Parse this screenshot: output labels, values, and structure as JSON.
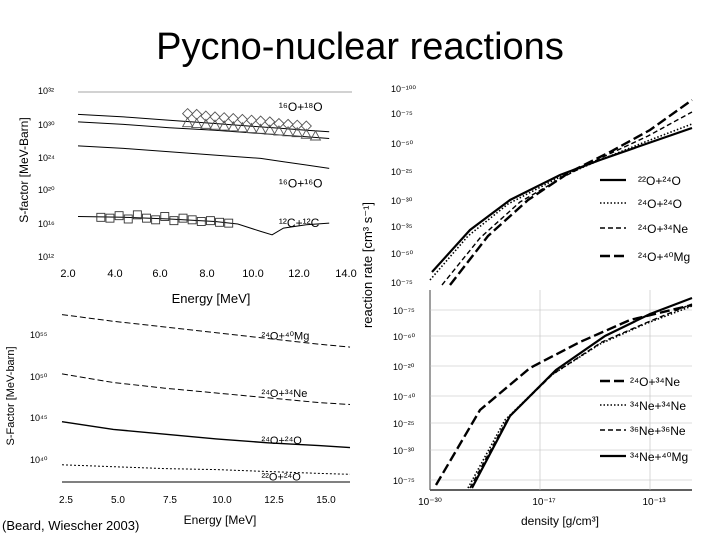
{
  "title": "Pycno-nuclear reactions",
  "citation": "(Beard, Wiescher 2003)",
  "colors": {
    "line": "#000000",
    "grid": "#bdbdbd",
    "frame": "#000000"
  },
  "chart_data": [
    {
      "type": "line",
      "id": "top-left",
      "ylabel": "S-factor   [MeV-Barn]",
      "xlabel": "Energy    [MeV]",
      "xlim": [
        2.0,
        14.0
      ],
      "xticks": [
        "2.0",
        "4.0",
        "6.0",
        "8.0",
        "10.0",
        "12.0",
        "14.0"
      ],
      "yticks": [
        "10³²",
        "10³⁰",
        "10²⁴",
        "10²⁰",
        "10¹⁶",
        "10¹²"
      ],
      "ylim_exp": [
        12,
        32
      ],
      "log_y": true,
      "series": [
        {
          "name": "16O+18O curve",
          "x": [
            2,
            4,
            6,
            8,
            10,
            11,
            12,
            13
          ],
          "y": [
            29.3,
            29.0,
            28.6,
            28.2,
            27.8,
            27.6,
            27.4,
            27.2
          ]
        },
        {
          "name": "16O+18O lower curve",
          "x": [
            2,
            4,
            6,
            8,
            10,
            11,
            12,
            13
          ],
          "y": [
            28.4,
            28.1,
            27.7,
            27.4,
            27.0,
            26.8,
            26.6,
            26.4
          ]
        },
        {
          "name": "16O+16O curve",
          "x": [
            2,
            4,
            6,
            8,
            10,
            11,
            12,
            13
          ],
          "y": [
            25.5,
            25.2,
            24.8,
            24.4,
            24.0,
            23.6,
            23.2,
            22.8
          ]
        },
        {
          "name": "12C+12C curve",
          "x": [
            2,
            4,
            6,
            8,
            9,
            10,
            10.5,
            11,
            12,
            13
          ],
          "y": [
            17.0,
            16.9,
            16.7,
            16.4,
            16.1,
            15.2,
            14.8,
            15.6,
            16.0,
            16.2
          ]
        }
      ],
      "markers": [
        {
          "shape": "diamond",
          "x": [
            6.8,
            7.2,
            7.6,
            8.0,
            8.4,
            8.8,
            9.2,
            9.6,
            10.0,
            10.4,
            10.8,
            11.2,
            11.6,
            12.0
          ],
          "y": [
            29.4,
            29.3,
            29.1,
            29.0,
            28.9,
            28.8,
            28.7,
            28.6,
            28.5,
            28.4,
            28.2,
            28.1,
            28.0,
            27.9
          ]
        },
        {
          "shape": "triangle",
          "x": [
            6.8,
            7.2,
            7.6,
            8.0,
            8.4,
            8.8,
            9.2,
            9.6,
            10.0,
            10.4,
            10.8,
            11.2,
            11.6,
            12.0,
            12.4
          ],
          "y": [
            28.3,
            28.2,
            28.1,
            28.0,
            27.9,
            27.8,
            27.7,
            27.6,
            27.5,
            27.4,
            27.3,
            27.2,
            27.1,
            26.9,
            26.7
          ]
        },
        {
          "shape": "square",
          "x": [
            3.0,
            3.4,
            3.8,
            4.2,
            4.6,
            5.0,
            5.4,
            5.8,
            6.2,
            6.6,
            7.0,
            7.4,
            7.8,
            8.2,
            8.6
          ],
          "y": [
            16.9,
            16.8,
            17.1,
            16.7,
            17.2,
            16.8,
            16.6,
            17.0,
            16.5,
            16.8,
            16.6,
            16.4,
            16.5,
            16.3,
            16.2
          ]
        }
      ],
      "annotations": [
        {
          "text": "¹⁶O+¹⁸O",
          "x": 10.8,
          "y": 30.2
        },
        {
          "text": "¹⁶O+¹⁶O",
          "x": 10.8,
          "y": 21.0
        },
        {
          "text": "¹²C+¹²C",
          "x": 10.8,
          "y": 16.2
        }
      ]
    },
    {
      "type": "line",
      "id": "bottom-left",
      "ylabel": "S-Factor  [MeV-barn]",
      "xlabel": "Energy   [MeV]",
      "xlim": [
        2.5,
        16.5
      ],
      "xticks": [
        "2.5",
        "5.0",
        "7.5",
        "10.0",
        "12.5",
        "15.0"
      ],
      "yticks": [
        "10⁵⁵",
        "10⁵⁰",
        "10⁴⁵",
        "10⁴⁰"
      ],
      "log_y": true,
      "series": [
        {
          "name": "24O+40Mg",
          "x": [
            2.5,
            5,
            7.5,
            10,
            12.5,
            15,
            16.5
          ],
          "y": [
            57.0,
            56.3,
            55.7,
            55.1,
            54.5,
            53.9,
            53.6
          ]
        },
        {
          "name": "24O+34Ne",
          "x": [
            2.5,
            5,
            7.5,
            10,
            12.5,
            15,
            16.5
          ],
          "y": [
            50.8,
            49.9,
            49.3,
            48.8,
            48.3,
            47.8,
            47.6
          ]
        },
        {
          "name": "24O+24O",
          "x": [
            2.5,
            5,
            7.5,
            10,
            12.5,
            15,
            16.5
          ],
          "y": [
            45.8,
            45.0,
            44.5,
            44.0,
            43.6,
            43.3,
            43.1
          ]
        },
        {
          "name": "22O+24O",
          "x": [
            2.5,
            5,
            7.5,
            10,
            12.5,
            15,
            16.5
          ],
          "y": [
            41.3,
            41.1,
            40.9,
            40.8,
            40.6,
            40.4,
            40.3
          ]
        }
      ],
      "annotations": [
        {
          "text": "²⁴O+⁴⁰Mg",
          "x": 12.2,
          "y": 54.8
        },
        {
          "text": "²⁴O+³⁴Ne",
          "x": 12.2,
          "y": 48.8
        },
        {
          "text": "²⁴O+²⁴O",
          "x": 12.2,
          "y": 43.9
        },
        {
          "text": "²²O+²⁴O",
          "x": 12.2,
          "y": 40.1
        }
      ]
    },
    {
      "type": "line",
      "id": "top-right",
      "ylabel": "reaction rate   [cm³ s⁻¹]",
      "yticks": [
        "10⁻¹⁰⁰",
        "10⁻⁷⁵",
        "10⁻⁵⁰",
        "10⁻²⁵",
        "10⁻³⁰",
        "10⁻³⁵",
        "10⁻⁵⁰",
        "10⁻⁷⁵"
      ],
      "log_y": true,
      "legend_position": "right",
      "series": [
        {
          "name": "²²O+²⁴O",
          "style": "solid"
        },
        {
          "name": "²⁴O+²⁴O",
          "style": "dotted"
        },
        {
          "name": "²⁴O+³⁴Ne",
          "style": "dashed"
        },
        {
          "name": "²⁴O+⁴⁰Mg",
          "style": "longdash"
        }
      ]
    },
    {
      "type": "line",
      "id": "bottom-right",
      "xlabel": "density   [g/cm³]",
      "xticks": [
        "10⁻³⁰",
        "10⁻¹⁷",
        "10⁻¹³"
      ],
      "yticks": [
        "10⁻⁷⁵",
        "10⁻⁶⁰",
        "10⁻²⁰",
        "10⁻⁴⁰",
        "10⁻²⁵",
        "10⁻³⁰",
        "10⁻⁷⁵"
      ],
      "log_y": true,
      "legend_position": "right",
      "series": [
        {
          "name": "²⁴O+³⁴Ne",
          "style": "longdash"
        },
        {
          "name": "³⁴Ne+³⁴Ne",
          "style": "dotted"
        },
        {
          "name": "³⁶Ne+³⁶Ne",
          "style": "dashed"
        },
        {
          "name": "³⁴Ne+⁴⁰Mg",
          "style": "solid"
        }
      ]
    }
  ]
}
